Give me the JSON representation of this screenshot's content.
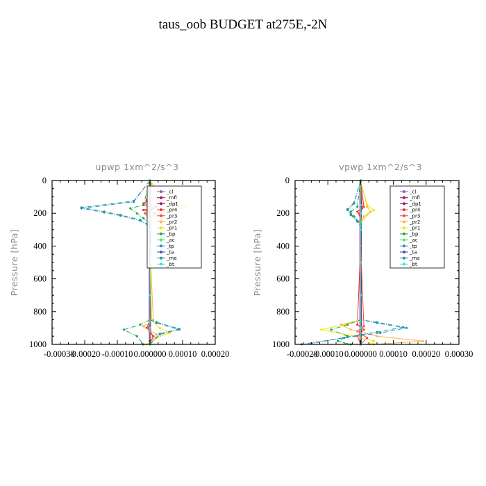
{
  "title": "taus_oob  BUDGET at275E,-2N",
  "series_colors": {
    "_cl": "#9b59b6",
    "_mfl": "#8e1a6e",
    "_dp1": "#b0105a",
    "_pr4": "#e8383b",
    "_pr3": "#ff4040",
    "_pr2": "#ffb347",
    "_pr1": "#f2e600",
    "_bp": "#1aa84a",
    "_ac": "#55e255",
    "_tp": "#2c8fc9",
    "_ta": "#3a4fd0",
    "_ma": "#1f9aa0",
    "_bt": "#2fe6e6"
  },
  "chart_data": [
    {
      "type": "line",
      "title": "upwp   1xm^2/s^3",
      "ylabel": "Pressure [hPa]",
      "xlim": [
        -0.0003,
        0.0002
      ],
      "ylim": [
        1000,
        0
      ],
      "y_inverted": true,
      "xticks": [
        "-0.00030",
        "-0.00020",
        "-0.00010",
        "0.000000",
        "0.00010",
        "0.00020"
      ],
      "yticks": [
        "0",
        "200",
        "400",
        "600",
        "800",
        "1000"
      ],
      "legend_position": "top-right",
      "series": [
        {
          "name": "_cl",
          "x": [
            0,
            0,
            0,
            0,
            0,
            0,
            0,
            0,
            0
          ],
          "y": [
            0,
            150,
            200,
            300,
            500,
            700,
            850,
            925,
            1000
          ]
        },
        {
          "name": "_mfl",
          "x": [
            0,
            0,
            0,
            0,
            0,
            0,
            0,
            0,
            0
          ],
          "y": [
            0,
            150,
            200,
            300,
            500,
            700,
            850,
            925,
            1000
          ]
        },
        {
          "name": "_dp1",
          "x": [
            0,
            2e-06,
            -2e-06,
            0,
            0,
            0,
            1e-06,
            0,
            0
          ],
          "y": [
            0,
            150,
            200,
            300,
            500,
            700,
            850,
            925,
            1000
          ]
        },
        {
          "name": "_pr4",
          "x": [
            0,
            0,
            -2e-05,
            2e-05,
            -2e-05,
            1.5e-05,
            0,
            0,
            0,
            -1e-05,
            1e-05,
            0
          ],
          "y": [
            0,
            120,
            140,
            160,
            180,
            200,
            250,
            400,
            850,
            900,
            950,
            1000
          ]
        },
        {
          "name": "_pr3",
          "x": [
            0,
            -1e-05,
            -2e-05,
            1e-05,
            -1.5e-05,
            0,
            0,
            0,
            -5e-06,
            1e-05,
            0
          ],
          "y": [
            0,
            120,
            150,
            170,
            200,
            240,
            400,
            850,
            900,
            950,
            1000
          ]
        },
        {
          "name": "_pr2",
          "x": [
            0,
            3e-05,
            8e-05,
            0.0001,
            4e-05,
            0,
            0,
            1e-05,
            -2e-05,
            2e-05,
            0
          ],
          "y": [
            0,
            130,
            150,
            170,
            190,
            230,
            400,
            850,
            890,
            940,
            1000
          ]
        },
        {
          "name": "_pr1",
          "x": [
            0,
            5e-05,
            0.00011,
            7e-05,
            2e-05,
            0,
            0,
            5e-06,
            3e-05,
            6e-05,
            2e-05,
            -1e-05
          ],
          "y": [
            0,
            120,
            160,
            180,
            200,
            240,
            400,
            850,
            900,
            930,
            960,
            1000
          ]
        },
        {
          "name": "_bp",
          "x": [
            0,
            -2e-05,
            -6e-05,
            -4e-05,
            -2e-05,
            0,
            0,
            -3e-05,
            -8e-05,
            -4e-05,
            -2e-05
          ],
          "y": [
            0,
            150,
            170,
            200,
            230,
            260,
            850,
            880,
            910,
            950,
            1000
          ]
        },
        {
          "name": "_ac",
          "x": [
            0,
            0,
            0,
            0,
            0,
            0,
            0,
            0
          ],
          "y": [
            0,
            150,
            200,
            300,
            500,
            700,
            900,
            1000
          ]
        },
        {
          "name": "_tp",
          "x": [
            0,
            -5e-05,
            -0.00021,
            -0.00014,
            -9e-05,
            -3e-05,
            0,
            0,
            2e-05,
            9e-05,
            3e-05,
            0
          ],
          "y": [
            0,
            130,
            170,
            195,
            215,
            245,
            280,
            850,
            870,
            910,
            940,
            1000
          ]
        },
        {
          "name": "_ta",
          "x": [
            0,
            0,
            0,
            0,
            0,
            0,
            0,
            0
          ],
          "y": [
            0,
            150,
            200,
            300,
            500,
            700,
            900,
            1000
          ]
        },
        {
          "name": "_ma",
          "x": [
            0,
            -5e-05,
            -0.00021,
            -0.00014,
            -9e-05,
            -3e-05,
            0,
            0,
            2e-05,
            9e-05,
            3e-05,
            0
          ],
          "y": [
            0,
            125,
            165,
            190,
            210,
            240,
            275,
            850,
            865,
            905,
            935,
            1000
          ]
        },
        {
          "name": "_bt",
          "x": [
            0,
            0,
            0,
            0,
            0,
            0,
            0,
            0
          ],
          "y": [
            0,
            150,
            200,
            300,
            500,
            700,
            900,
            1000
          ]
        }
      ]
    },
    {
      "type": "line",
      "title": "vpwp   1xm^2/s^3",
      "ylabel": "Pressure [hPa]",
      "xlim": [
        -0.0002,
        0.0003
      ],
      "ylim": [
        1000,
        0
      ],
      "y_inverted": true,
      "xticks": [
        "-0.00020",
        "-0.00010",
        "0.000000",
        "0.00010",
        "0.00020",
        "0.00030"
      ],
      "yticks": [
        "0",
        "200",
        "400",
        "600",
        "800",
        "1000"
      ],
      "legend_position": "top-right",
      "series": [
        {
          "name": "_cl",
          "x": [
            0,
            0,
            0,
            0,
            0,
            0,
            0,
            0,
            0
          ],
          "y": [
            0,
            150,
            200,
            300,
            500,
            700,
            850,
            925,
            1000
          ]
        },
        {
          "name": "_mfl",
          "x": [
            0,
            0,
            0,
            0,
            0,
            0,
            0,
            0,
            0
          ],
          "y": [
            0,
            150,
            200,
            300,
            500,
            700,
            850,
            925,
            1000
          ]
        },
        {
          "name": "_dp1",
          "x": [
            0,
            3e-06,
            -3e-06,
            0,
            0,
            0,
            2e-06,
            -2e-06,
            0
          ],
          "y": [
            0,
            150,
            200,
            300,
            500,
            700,
            850,
            925,
            1000
          ]
        },
        {
          "name": "_pr4",
          "x": [
            0,
            1e-05,
            -1e-05,
            0,
            0,
            -1e-05,
            1e-05,
            -1e-05,
            0
          ],
          "y": [
            0,
            160,
            190,
            230,
            400,
            880,
            910,
            950,
            1000
          ]
        },
        {
          "name": "_pr3",
          "x": [
            0,
            5e-06,
            -5e-06,
            0,
            0,
            1e-05,
            -1e-05,
            2e-05,
            0
          ],
          "y": [
            0,
            170,
            200,
            240,
            400,
            890,
            920,
            960,
            1000
          ]
        },
        {
          "name": "_pr2",
          "x": [
            0,
            2e-05,
            3e-05,
            1e-05,
            0,
            0,
            -6e-05,
            -3e-05,
            5e-05,
            0.00019,
            4e-05
          ],
          "y": [
            0,
            160,
            190,
            220,
            260,
            850,
            880,
            910,
            950,
            980,
            1000
          ]
        },
        {
          "name": "_pr1",
          "x": [
            0,
            2e-05,
            4e-05,
            2e-05,
            0,
            0,
            -5e-05,
            -0.00012,
            -2e-05,
            4e-05,
            3e-05
          ],
          "y": [
            0,
            150,
            180,
            210,
            260,
            850,
            880,
            910,
            950,
            980,
            1000
          ]
        },
        {
          "name": "_bp",
          "x": [
            0,
            -1e-05,
            -3e-05,
            -2e-05,
            0,
            0,
            -4e-05,
            -9e-05,
            -4e-05,
            -7e-05,
            -3e-05
          ],
          "y": [
            0,
            160,
            190,
            220,
            260,
            850,
            880,
            910,
            950,
            980,
            1000
          ]
        },
        {
          "name": "_ac",
          "x": [
            0,
            0,
            0,
            0,
            0,
            0,
            0,
            0
          ],
          "y": [
            0,
            150,
            200,
            300,
            500,
            700,
            900,
            1000
          ]
        },
        {
          "name": "_tp",
          "x": [
            0,
            -2e-05,
            -4e-05,
            -3e-05,
            -1e-05,
            0,
            0,
            5e-05,
            0.00014,
            6e-05,
            -5e-05,
            -0.00018
          ],
          "y": [
            0,
            140,
            180,
            210,
            250,
            280,
            850,
            870,
            900,
            930,
            960,
            1000
          ]
        },
        {
          "name": "_ta",
          "x": [
            0,
            0,
            0,
            0,
            0,
            0,
            0,
            0
          ],
          "y": [
            0,
            150,
            200,
            300,
            500,
            700,
            900,
            1000
          ]
        },
        {
          "name": "_ma",
          "x": [
            0,
            -2e-05,
            -4e-05,
            -3e-05,
            -1e-05,
            0,
            0,
            5e-05,
            0.00013,
            5e-05,
            -4e-05,
            -0.00015
          ],
          "y": [
            0,
            135,
            175,
            205,
            245,
            275,
            850,
            865,
            895,
            925,
            955,
            995
          ]
        },
        {
          "name": "_bt",
          "x": [
            0,
            0,
            0,
            0,
            0,
            0,
            0,
            0
          ],
          "y": [
            0,
            150,
            200,
            300,
            500,
            700,
            900,
            1000
          ]
        }
      ]
    }
  ]
}
